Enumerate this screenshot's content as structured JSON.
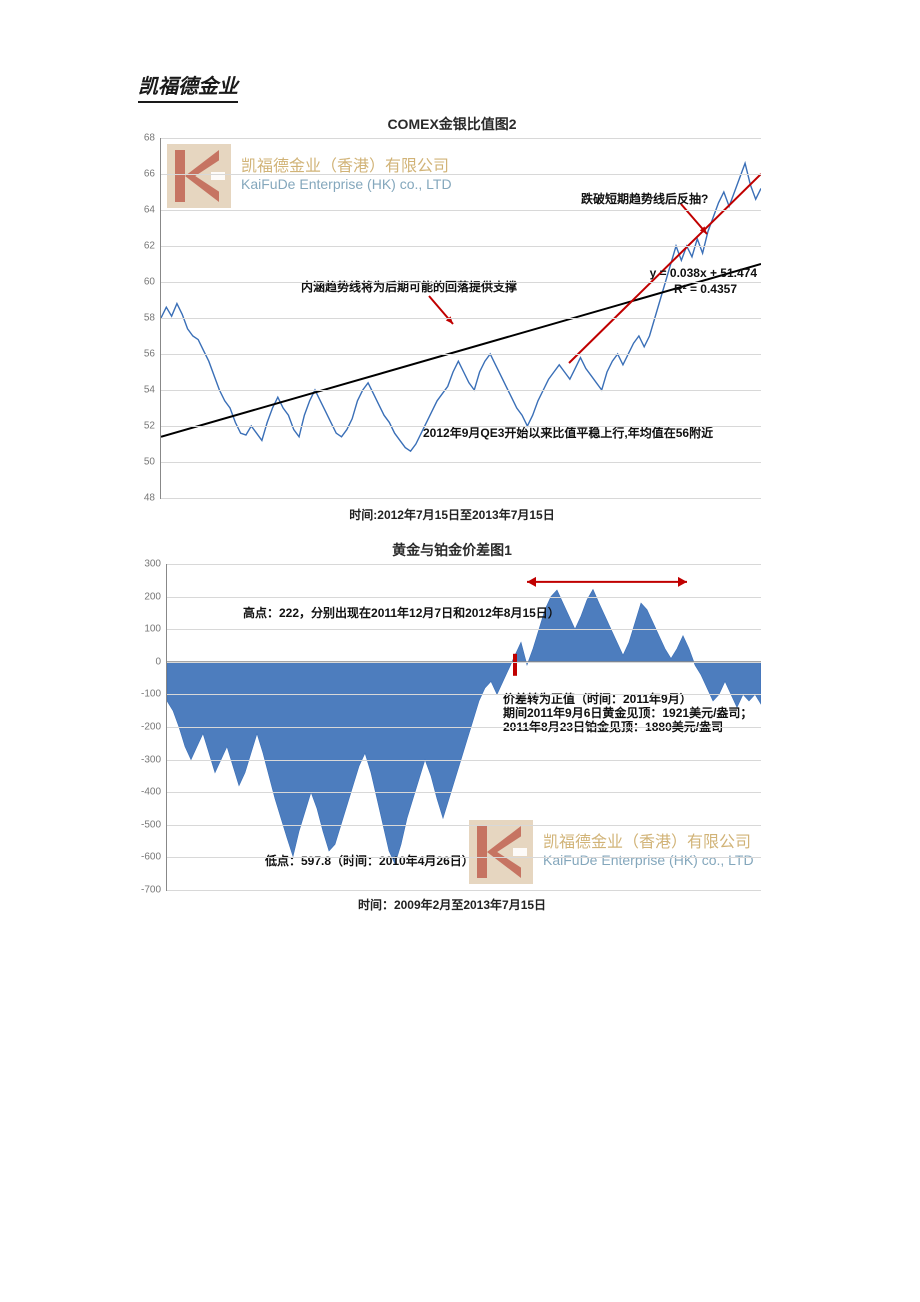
{
  "doc_title": "凯福德金业",
  "watermark": {
    "line1": "凯福德金业（香港）有限公司",
    "line2": "KaiFuDe Enterprise (HK) co., LTD"
  },
  "chart1": {
    "type": "line",
    "title": "COMEX金银比值图2",
    "title_fontsize": 14,
    "xlabel": "时间:2012年7月15日至2013年7月15日",
    "ylim": [
      48,
      68
    ],
    "ytick_step": 2,
    "yticks": [
      48,
      50,
      52,
      54,
      56,
      58,
      60,
      62,
      64,
      66,
      68
    ],
    "background_color": "#ffffff",
    "grid_color": "#d8d8d8",
    "line_color": "#3a6fb7",
    "trend_black": {
      "color": "#000000",
      "width": 2,
      "from": [
        0,
        51.4
      ],
      "to": [
        100,
        61.0
      ]
    },
    "trend_red": {
      "color": "#c00000",
      "width": 2,
      "from": [
        68,
        55.5
      ],
      "to": [
        100,
        66.0
      ]
    },
    "regression": {
      "eq": "y = 0.038x + 51.474",
      "r2": "R² = 0.4357"
    },
    "annotations": {
      "a1": "内涵趋势线将为后期可能的回落提供支撑",
      "a2": "2012年9月QE3开始以来比值平稳上行,年均值在56附近",
      "a3": "跌破短期趋势线后反抽?"
    },
    "arrow_color": "#c00000",
    "series": [
      58.0,
      58.6,
      58.1,
      58.8,
      58.2,
      57.4,
      57.0,
      56.8,
      56.2,
      55.6,
      54.8,
      54.0,
      53.4,
      53.0,
      52.2,
      51.6,
      51.5,
      52.0,
      51.6,
      51.2,
      52.2,
      53.0,
      53.6,
      53.0,
      52.6,
      51.8,
      51.4,
      52.6,
      53.4,
      54.0,
      53.4,
      52.8,
      52.2,
      51.6,
      51.4,
      51.8,
      52.4,
      53.4,
      54.0,
      54.4,
      53.8,
      53.2,
      52.6,
      52.2,
      51.6,
      51.2,
      50.8,
      50.6,
      51.0,
      51.6,
      52.2,
      52.8,
      53.4,
      53.8,
      54.2,
      55.0,
      55.6,
      55.0,
      54.4,
      54.0,
      55.0,
      55.6,
      56.0,
      55.4,
      54.8,
      54.2,
      53.6,
      53.0,
      52.6,
      52.0,
      52.6,
      53.4,
      54.0,
      54.6,
      55.0,
      55.4,
      55.0,
      54.6,
      55.2,
      55.8,
      55.2,
      54.8,
      54.4,
      54.0,
      55.0,
      55.6,
      56.0,
      55.4,
      56.0,
      56.6,
      57.0,
      56.4,
      57.0,
      58.0,
      59.0,
      60.0,
      61.0,
      62.0,
      61.2,
      62.0,
      61.4,
      62.4,
      61.6,
      62.8,
      63.6,
      64.4,
      65.0,
      64.2,
      65.0,
      65.8,
      66.6,
      65.4,
      64.6,
      65.2
    ]
  },
  "chart2": {
    "type": "area",
    "title": "黄金与铂金价差图1",
    "title_fontsize": 14,
    "xlabel": "时间：2009年2月至2013年7月15日",
    "ylim": [
      -700,
      300
    ],
    "ytick_step": 100,
    "yticks": [
      -700,
      -600,
      -500,
      -400,
      -300,
      -200,
      -100,
      0,
      100,
      200,
      300
    ],
    "background_color": "#ffffff",
    "grid_color": "#d8d8d8",
    "fill_color": "#3a6fb7",
    "fill_opacity": 0.9,
    "annotations": {
      "high": "高点：222，分别出现在2011年12月7日和2012年8月15日）",
      "turn1": "价差转为正值（时间：2011年9月）",
      "turn2": "期间2011年9月6日黄金见顶：1921美元/盎司；",
      "turn3": "2011年8月23日铂金见顶：1880美元/盎司",
      "low": "低点：597.8（时间：2010年4月26日）"
    },
    "marker_color": "#c00000",
    "arrow_color": "#c00000",
    "series": [
      -120,
      -150,
      -200,
      -260,
      -300,
      -260,
      -220,
      -280,
      -340,
      -300,
      -260,
      -320,
      -380,
      -340,
      -280,
      -220,
      -280,
      -350,
      -420,
      -480,
      -540,
      -597,
      -520,
      -460,
      -400,
      -450,
      -520,
      -580,
      -560,
      -500,
      -440,
      -380,
      -320,
      -280,
      -340,
      -420,
      -500,
      -580,
      -620,
      -560,
      -480,
      -420,
      -360,
      -300,
      -350,
      -420,
      -480,
      -420,
      -360,
      -300,
      -240,
      -180,
      -120,
      -80,
      -60,
      -100,
      -60,
      -20,
      20,
      60,
      -10,
      40,
      100,
      160,
      200,
      220,
      180,
      140,
      100,
      140,
      190,
      222,
      180,
      140,
      100,
      60,
      20,
      60,
      120,
      180,
      160,
      120,
      80,
      40,
      10,
      40,
      80,
      40,
      -10,
      -40,
      -80,
      -120,
      -100,
      -60,
      -100,
      -140,
      -100,
      -120,
      -100,
      -130
    ]
  }
}
